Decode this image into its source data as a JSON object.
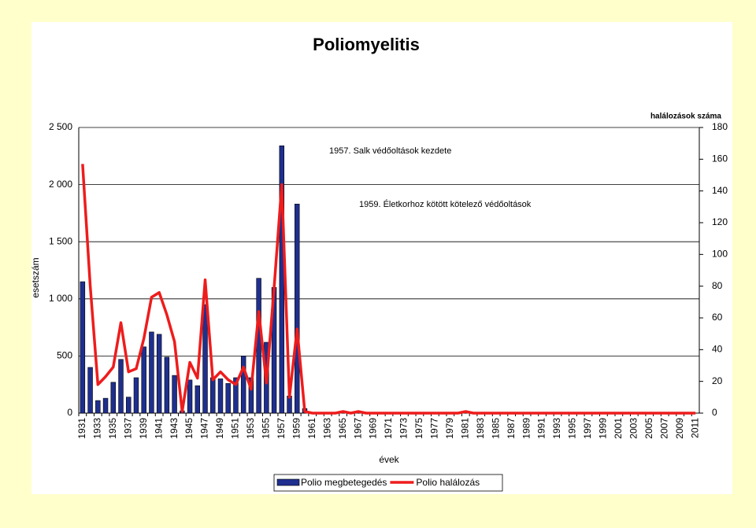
{
  "chart_data": {
    "type": "bar",
    "title": "Poliomyelitis",
    "y_label": "esetszám",
    "y2_label": "halálozások száma",
    "x_label": "évek",
    "annotations": [
      "1957. Salk védőoltások kezdete",
      "1959. Életkorhoz  kötött kötelező védőoltások"
    ],
    "categories": [
      "1931",
      null,
      "1933",
      null,
      "1935",
      null,
      "1937",
      null,
      "1939",
      null,
      "1941",
      null,
      "1943",
      null,
      "1945",
      null,
      "1947",
      null,
      "1949",
      null,
      "1951",
      null,
      "1953",
      null,
      "1955",
      null,
      "1957",
      null,
      "1959",
      null,
      "1961",
      null,
      "1963",
      null,
      "1965",
      null,
      "1967",
      null,
      "1969",
      null,
      "1971",
      null,
      "1973",
      null,
      "1975",
      null,
      "1977",
      null,
      "1979",
      null,
      "1981",
      null,
      "1983",
      null,
      "1985",
      null,
      "1987",
      null,
      "1989",
      null,
      "1991",
      null,
      "1993",
      null,
      "1995",
      null,
      "1997",
      null,
      "1999",
      null,
      "2001",
      null,
      "2003",
      null,
      "2005",
      null,
      "2007",
      null,
      "2009",
      null,
      "2011"
    ],
    "series": [
      {
        "name": "Polio megbetegedés",
        "type": "bar",
        "color": "#1f2f8f",
        "values": [
          1150,
          400,
          110,
          130,
          270,
          470,
          140,
          310,
          580,
          710,
          690,
          490,
          330,
          20,
          290,
          240,
          950,
          310,
          300,
          260,
          310,
          500,
          310,
          1180,
          620,
          1100,
          2340,
          150,
          1830,
          40,
          0,
          0,
          0,
          0,
          0,
          0,
          0,
          0,
          0,
          0,
          0,
          0,
          0,
          0,
          0,
          0,
          0,
          0,
          0,
          0,
          0,
          0,
          0,
          0,
          0,
          0,
          0,
          0,
          0,
          0,
          0,
          0,
          0,
          0,
          0,
          0,
          0,
          0,
          0,
          0,
          0,
          0,
          0,
          0,
          0,
          0,
          0,
          0,
          0,
          0,
          0
        ]
      },
      {
        "name": "Polio halálozás",
        "type": "line",
        "axis": "y2",
        "color": "#ee1c1c",
        "values": [
          157,
          80,
          18,
          23,
          29,
          57,
          26,
          28,
          47,
          73,
          76,
          62,
          45,
          1,
          32,
          22,
          84,
          21,
          26,
          21,
          18,
          29,
          15,
          64,
          19,
          79,
          144,
          10,
          53,
          1,
          0,
          0,
          0,
          0,
          1,
          0,
          1,
          0,
          0,
          0,
          0,
          0,
          0,
          0,
          0,
          0,
          0,
          0,
          0,
          0,
          1,
          0,
          0,
          0,
          0,
          0,
          0,
          0,
          0,
          0,
          0,
          0,
          0,
          0,
          0,
          0,
          0,
          0,
          0,
          0,
          0,
          0,
          0,
          0,
          0,
          0,
          0,
          0,
          0,
          0,
          0
        ]
      }
    ],
    "ylim": [
      0,
      2500
    ],
    "yticks": [
      0,
      500,
      {
        "value": 1000,
        "label": "1 000"
      },
      {
        "value": 1500,
        "label": "1 500"
      },
      {
        "value": 2000,
        "label": "2 000"
      },
      {
        "value": 2500,
        "label": "2 500"
      }
    ],
    "y2lim": [
      0,
      180
    ],
    "y2ticks": [
      0,
      20,
      40,
      60,
      80,
      100,
      120,
      140,
      160,
      180
    ],
    "grid": true,
    "legend": "bottom"
  }
}
